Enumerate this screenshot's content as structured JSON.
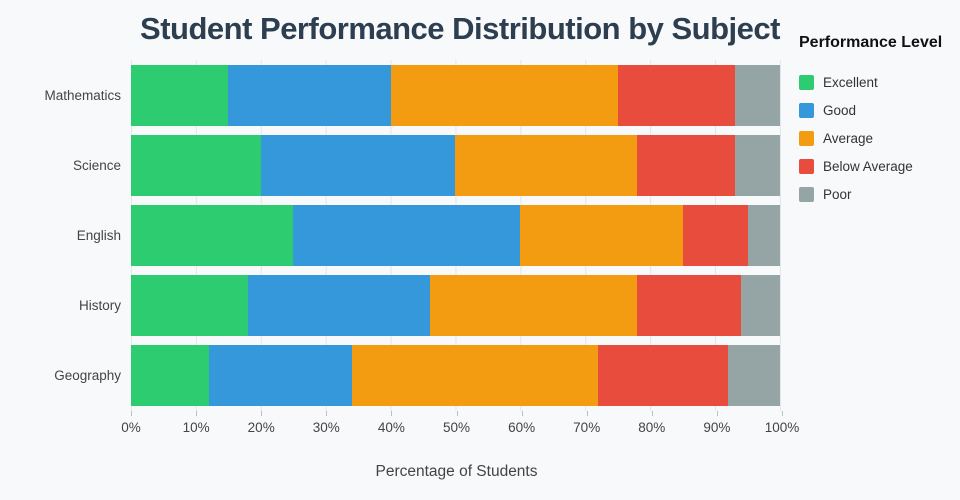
{
  "title": "Student Performance Distribution by Subject",
  "colors": {
    "excellent": "#2ecc71",
    "good": "#3498db",
    "average": "#f39c12",
    "below_average": "#e74c3c",
    "poor": "#95a5a6",
    "title_text": "#2c3e50",
    "axis_text": "#444444",
    "background": "#f8f9fa",
    "gridline": "#e3e6ea"
  },
  "chart_data": {
    "type": "bar",
    "orientation": "horizontal",
    "stacked": true,
    "title": "Student Performance Distribution by Subject",
    "xlabel": "Percentage of Students",
    "ylabel": "",
    "legend_title": "Performance Level",
    "legend_position": "right",
    "grid": true,
    "xlim": [
      0,
      100
    ],
    "xticks": [
      "0%",
      "10%",
      "20%",
      "30%",
      "40%",
      "50%",
      "60%",
      "70%",
      "80%",
      "90%",
      "100%"
    ],
    "categories": [
      "Mathematics",
      "Science",
      "English",
      "History",
      "Geography"
    ],
    "series": [
      {
        "name": "Excellent",
        "color": "#2ecc71",
        "values": [
          15,
          20,
          25,
          18,
          12
        ]
      },
      {
        "name": "Good",
        "color": "#3498db",
        "values": [
          25,
          30,
          35,
          28,
          22
        ]
      },
      {
        "name": "Average",
        "color": "#f39c12",
        "values": [
          35,
          28,
          25,
          32,
          38
        ]
      },
      {
        "name": "Below Average",
        "color": "#e74c3c",
        "values": [
          18,
          15,
          10,
          16,
          20
        ]
      },
      {
        "name": "Poor",
        "color": "#95a5a6",
        "values": [
          7,
          7,
          5,
          6,
          8
        ]
      }
    ]
  }
}
